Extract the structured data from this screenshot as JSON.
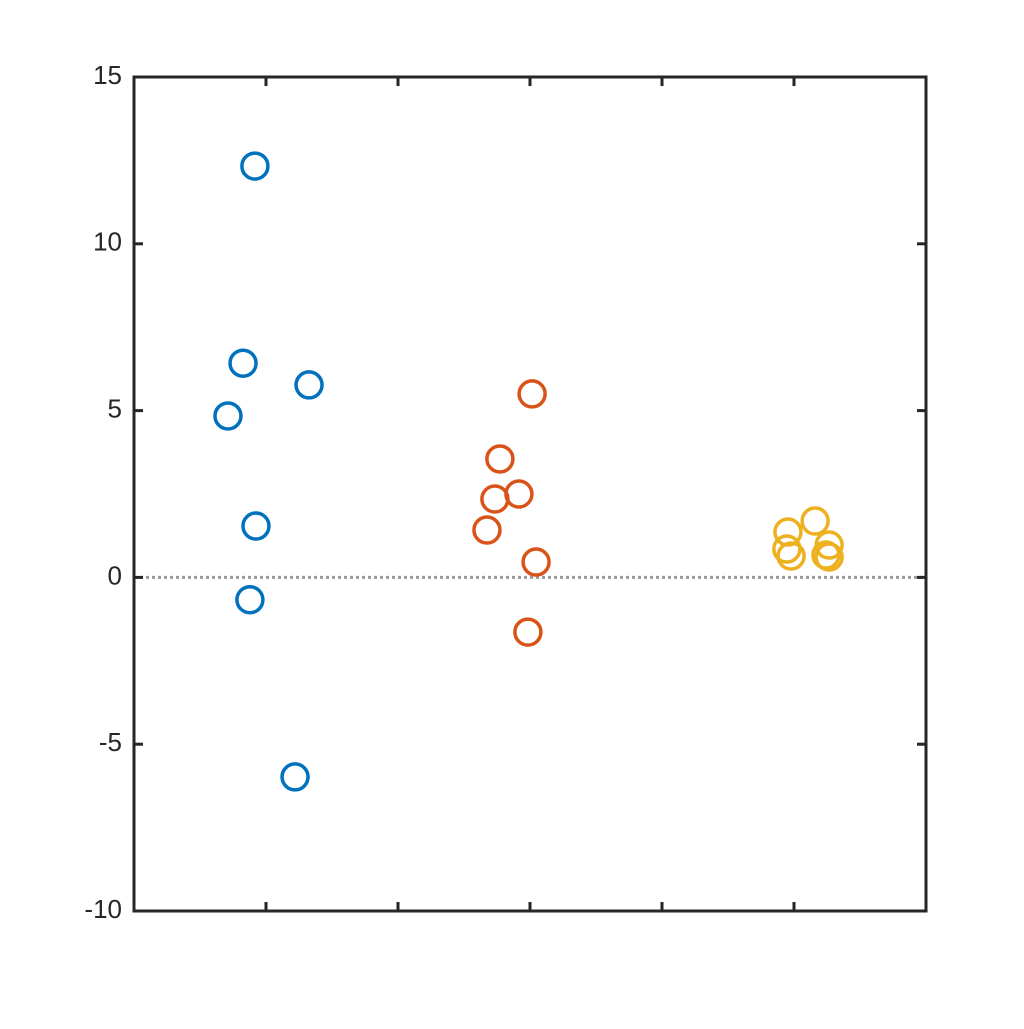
{
  "chart_data": {
    "type": "scatter",
    "xlim": [
      0.5,
      3.5
    ],
    "xticks": [
      1,
      1.5,
      2,
      2.5,
      3
    ],
    "ylim": [
      -10,
      15
    ],
    "yticks": [
      -10,
      -5,
      0,
      5,
      10,
      15
    ],
    "reference_line": 0,
    "series": [
      {
        "color": "#0072BD",
        "x": [
          0.958,
          0.913,
          1.163,
          0.856,
          0.962,
          0.939,
          1.11
        ],
        "values": [
          12.33,
          6.42,
          5.77,
          4.84,
          1.54,
          -0.67,
          -5.98
        ]
      },
      {
        "color": "#D95319",
        "x": [
          2.008,
          1.886,
          1.867,
          1.958,
          1.837,
          2.023,
          1.992
        ],
        "values": [
          5.5,
          3.55,
          2.35,
          2.5,
          1.42,
          0.46,
          -1.64
        ]
      },
      {
        "color": "#EDB120",
        "x": [
          3.08,
          2.977,
          2.973,
          2.989,
          3.133,
          3.121,
          3.133
        ],
        "values": [
          1.69,
          1.36,
          0.85,
          0.64,
          0.97,
          0.67,
          0.61
        ]
      }
    ]
  }
}
